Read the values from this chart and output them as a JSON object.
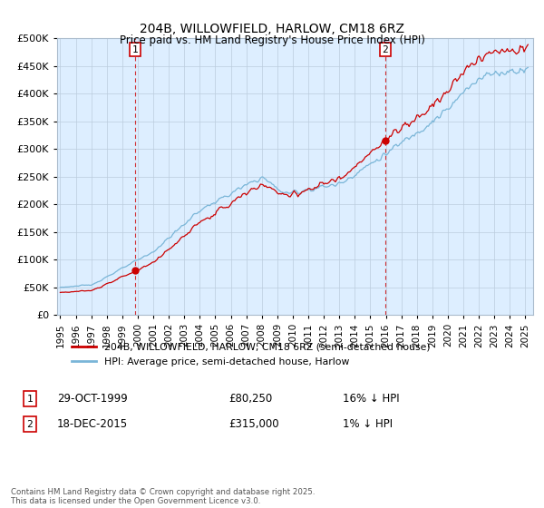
{
  "title": "204B, WILLOWFIELD, HARLOW, CM18 6RZ",
  "subtitle": "Price paid vs. HM Land Registry's House Price Index (HPI)",
  "legend_line1": "204B, WILLOWFIELD, HARLOW, CM18 6RZ (semi-detached house)",
  "legend_line2": "HPI: Average price, semi-detached house, Harlow",
  "footnote": "Contains HM Land Registry data © Crown copyright and database right 2025.\nThis data is licensed under the Open Government Licence v3.0.",
  "annotation1_label": "1",
  "annotation1_date": "29-OCT-1999",
  "annotation1_price": "£80,250",
  "annotation1_hpi": "16% ↓ HPI",
  "annotation2_label": "2",
  "annotation2_date": "18-DEC-2015",
  "annotation2_price": "£315,000",
  "annotation2_hpi": "1% ↓ HPI",
  "sale1_x": 1999.83,
  "sale1_y": 80250,
  "sale2_x": 2015.96,
  "sale2_y": 315000,
  "hpi_color": "#7ab6d8",
  "price_color": "#cc0000",
  "annotation_vline_color": "#cc0000",
  "chart_bg_color": "#ddeeff",
  "background_color": "#ffffff",
  "ylim": [
    0,
    500000
  ],
  "xlim_start": 1994.8,
  "xlim_end": 2025.5,
  "yticks": [
    0,
    50000,
    100000,
    150000,
    200000,
    250000,
    300000,
    350000,
    400000,
    450000,
    500000
  ],
  "xticks": [
    1995,
    1996,
    1997,
    1998,
    1999,
    2000,
    2001,
    2002,
    2003,
    2004,
    2005,
    2006,
    2007,
    2008,
    2009,
    2010,
    2011,
    2012,
    2013,
    2014,
    2015,
    2016,
    2017,
    2018,
    2019,
    2020,
    2021,
    2022,
    2023,
    2024,
    2025
  ]
}
